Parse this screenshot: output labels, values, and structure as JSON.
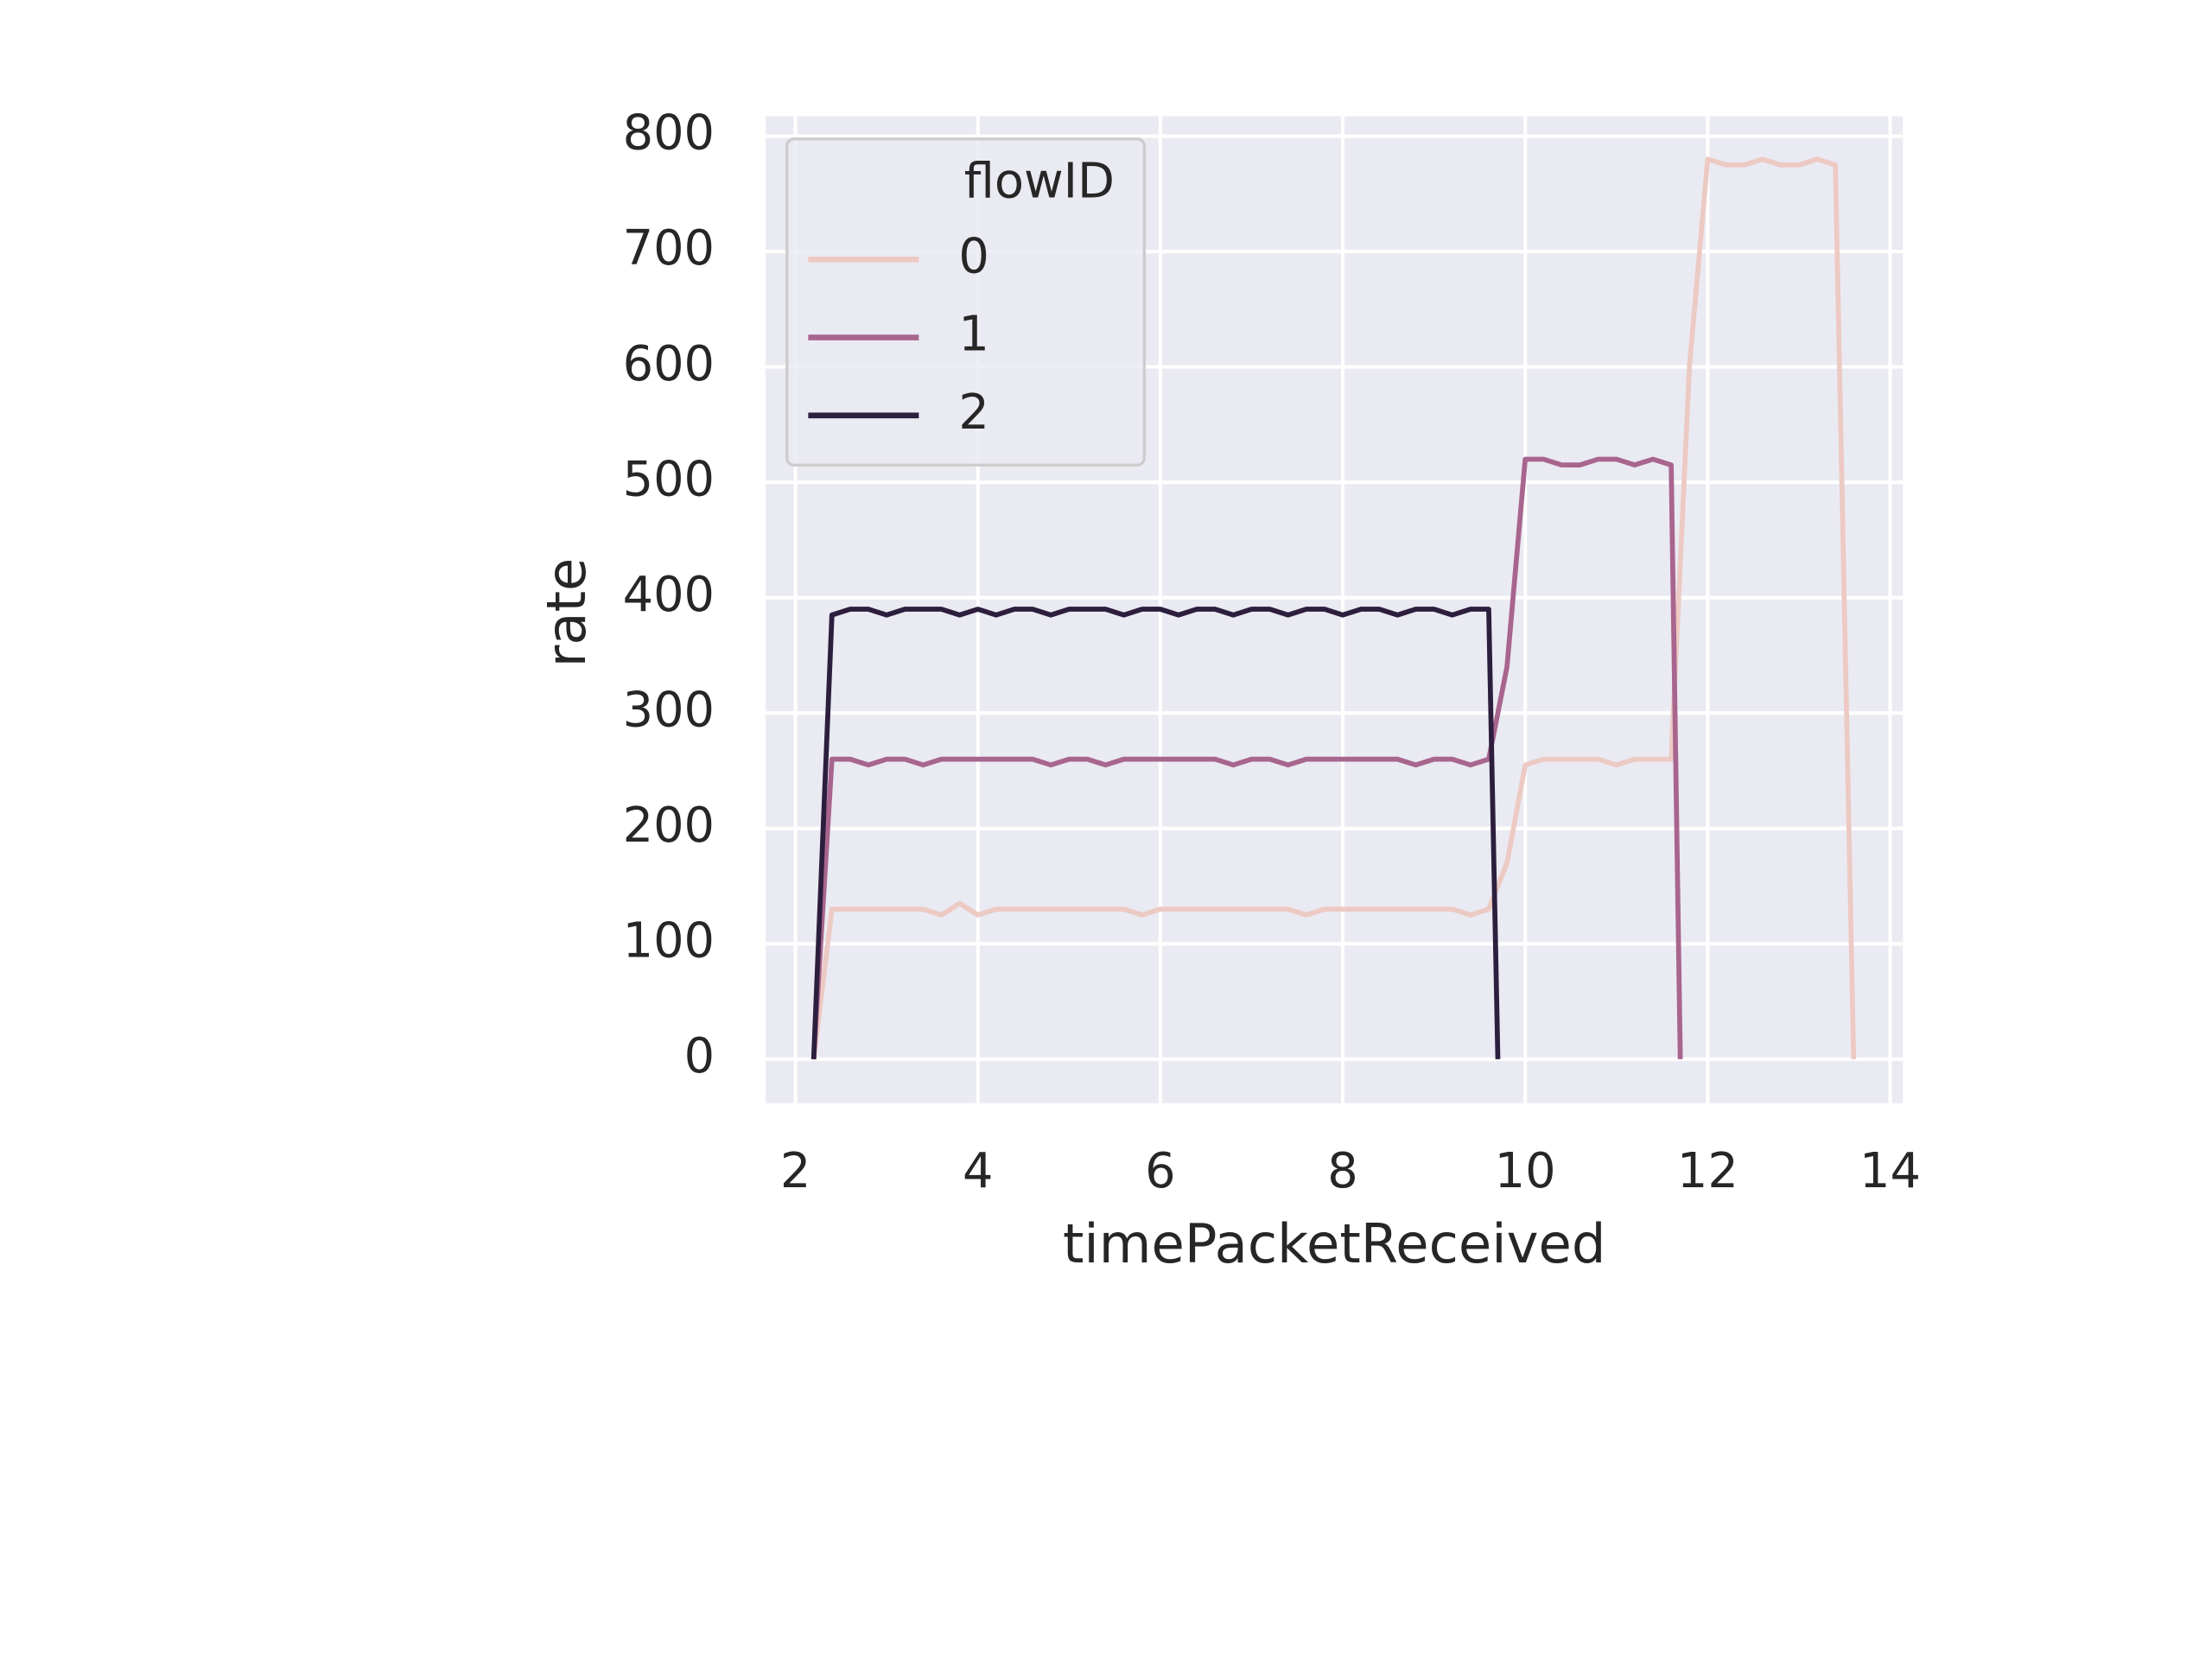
{
  "chart_data": {
    "type": "line",
    "xlabel": "timePacketReceived",
    "ylabel": "rate",
    "xlim": [
      1.674,
      14.14
    ],
    "ylim": [
      -38.1,
      817.2
    ],
    "xticks": [
      2,
      4,
      6,
      8,
      10,
      12,
      14
    ],
    "yticks": [
      0,
      100,
      200,
      300,
      400,
      500,
      600,
      700,
      800
    ],
    "grid": true,
    "background": "#eaeaf2",
    "legend": {
      "title": "flowID",
      "loc": "upper left"
    },
    "series": [
      {
        "name": "0",
        "color": "#eccac3",
        "x": [
          2.2,
          2.4,
          2.6,
          2.8,
          3,
          3.2,
          3.4,
          3.6,
          3.8,
          4,
          4.2,
          4.4,
          4.6,
          4.8,
          5,
          5.2,
          5.4,
          5.6,
          5.8,
          6,
          6.2,
          6.4,
          6.6,
          6.8,
          7,
          7.2,
          7.4,
          7.6,
          7.8,
          8,
          8.2,
          8.4,
          8.6,
          8.8,
          9,
          9.2,
          9.4,
          9.6,
          9.8,
          10,
          10.2,
          10.4,
          10.6,
          10.8,
          11,
          11.2,
          11.4,
          11.6,
          11.8,
          12,
          12.2,
          12.4,
          12.6,
          12.8,
          13,
          13.2,
          13.4,
          13.6
        ],
        "values": [
          0,
          130,
          130,
          130,
          130,
          130,
          130,
          125,
          135,
          125,
          130,
          130,
          130,
          130,
          130,
          130,
          130,
          130,
          125,
          130,
          130,
          130,
          130,
          130,
          130,
          130,
          130,
          125,
          130,
          130,
          130,
          130,
          130,
          130,
          130,
          130,
          125,
          130,
          170,
          255,
          260,
          260,
          260,
          260,
          255,
          260,
          260,
          260,
          600,
          780,
          775,
          775,
          780,
          775,
          775,
          780,
          775,
          0
        ]
      },
      {
        "name": "1",
        "color": "#a8658e",
        "x": [
          2.2,
          2.4,
          2.6,
          2.8,
          3,
          3.2,
          3.4,
          3.6,
          3.8,
          4,
          4.2,
          4.4,
          4.6,
          4.8,
          5,
          5.2,
          5.4,
          5.6,
          5.8,
          6,
          6.2,
          6.4,
          6.6,
          6.8,
          7,
          7.2,
          7.4,
          7.6,
          7.8,
          8,
          8.2,
          8.4,
          8.6,
          8.8,
          9,
          9.2,
          9.4,
          9.6,
          9.8,
          10,
          10.2,
          10.4,
          10.6,
          10.8,
          11,
          11.2,
          11.4,
          11.6,
          11.7
        ],
        "values": [
          0,
          260,
          260,
          255,
          260,
          260,
          255,
          260,
          260,
          260,
          260,
          260,
          260,
          255,
          260,
          260,
          255,
          260,
          260,
          260,
          260,
          260,
          260,
          255,
          260,
          260,
          255,
          260,
          260,
          260,
          260,
          260,
          260,
          255,
          260,
          260,
          255,
          260,
          340,
          520,
          520,
          515,
          515,
          520,
          520,
          515,
          520,
          515,
          0
        ]
      },
      {
        "name": "2",
        "color": "#2d1e3e",
        "x": [
          2.2,
          2.4,
          2.6,
          2.8,
          3,
          3.2,
          3.4,
          3.6,
          3.8,
          4,
          4.2,
          4.4,
          4.6,
          4.8,
          5,
          5.2,
          5.4,
          5.6,
          5.8,
          6,
          6.2,
          6.4,
          6.6,
          6.8,
          7,
          7.2,
          7.4,
          7.6,
          7.8,
          8,
          8.2,
          8.4,
          8.6,
          8.8,
          9,
          9.2,
          9.4,
          9.6,
          9.7
        ],
        "values": [
          0,
          385,
          390,
          390,
          385,
          390,
          390,
          390,
          385,
          390,
          385,
          390,
          390,
          385,
          390,
          390,
          390,
          385,
          390,
          390,
          385,
          390,
          390,
          385,
          390,
          390,
          385,
          390,
          390,
          385,
          390,
          390,
          385,
          390,
          390,
          385,
          390,
          390,
          0
        ]
      }
    ]
  }
}
